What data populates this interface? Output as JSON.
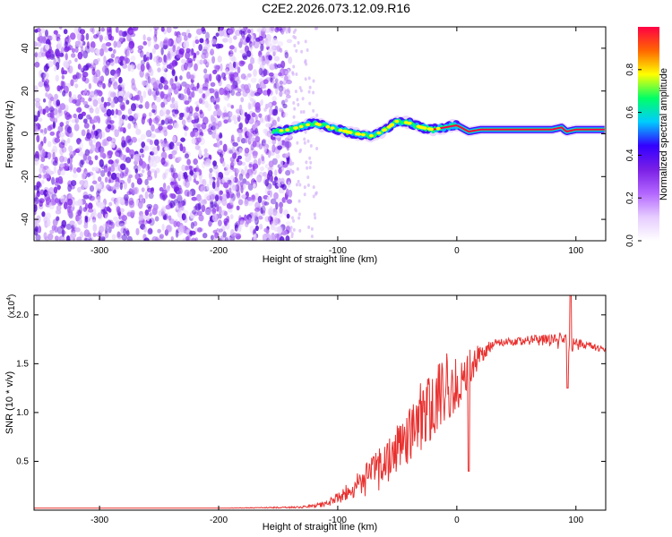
{
  "title": "C2E2.2026.073.12.09.R16",
  "chart_data": [
    {
      "type": "heatmap",
      "name": "spectrogram",
      "xlabel": "Height of straight line (km)",
      "ylabel": "Frequency (Hz)",
      "xlim": [
        -355,
        125
      ],
      "ylim": [
        -50,
        50
      ],
      "x_ticks": [
        -300,
        -200,
        -100,
        0,
        100
      ],
      "x_tick_labels": [
        "-300",
        "-200",
        "-100",
        "0",
        "100"
      ],
      "y_ticks": [
        -40,
        -20,
        0,
        20,
        40
      ],
      "y_tick_labels": [
        "-40",
        "-20",
        "0",
        "20",
        "40"
      ],
      "noise_region_x": [
        -355,
        -140
      ],
      "signal_track": {
        "x": [
          -155,
          -140,
          -120,
          -100,
          -85,
          -70,
          -60,
          -50,
          -40,
          -30,
          -20,
          -10,
          0,
          10,
          20,
          40,
          60,
          80,
          88,
          92,
          100,
          125
        ],
        "freq": [
          1,
          2,
          5,
          2,
          0,
          -1,
          2,
          6,
          5,
          3,
          2,
          3,
          4,
          1,
          2,
          2,
          2,
          2,
          3,
          1,
          2,
          2
        ]
      },
      "colorbar": {
        "label": "Normalized spectral amplitude",
        "range": [
          0,
          1
        ],
        "ticks": [
          0.0,
          0.2,
          0.4,
          0.6,
          0.8
        ],
        "tick_labels": [
          "0.0",
          "0.2",
          "0.4",
          "0.6",
          "0.8"
        ],
        "colors": [
          "#ffffff",
          "#e6ccff",
          "#b366ff",
          "#7a1fe6",
          "#3300ff",
          "#00ccff",
          "#00ff66",
          "#ffff00",
          "#ff6600",
          "#ff0044"
        ]
      }
    },
    {
      "type": "line",
      "name": "snr",
      "xlabel": "Height of straight line (km)",
      "ylabel": "SNR (10 * v/v)",
      "y_multiplier": "(x10",
      "y_multiplier_exp": "4",
      "y_multiplier_close": ")",
      "xlim": [
        -355,
        125
      ],
      "ylim": [
        0,
        2.2
      ],
      "x_ticks": [
        -300,
        -200,
        -100,
        0,
        100
      ],
      "x_tick_labels": [
        "-300",
        "-200",
        "-100",
        "0",
        "100"
      ],
      "y_ticks": [
        0.5,
        1.0,
        1.5,
        2.0
      ],
      "y_tick_labels": [
        "0.5",
        "1.0",
        "1.5",
        "2.0"
      ],
      "line_color": "#e8312f",
      "series": {
        "x": [
          -355,
          -200,
          -130,
          -110,
          -100,
          -90,
          -80,
          -70,
          -60,
          -50,
          -40,
          -30,
          -20,
          -10,
          0,
          10,
          20,
          30,
          40,
          50,
          60,
          70,
          80,
          90,
          95,
          100,
          110,
          125
        ],
        "y": [
          0.02,
          0.02,
          0.03,
          0.06,
          0.12,
          0.2,
          0.28,
          0.36,
          0.48,
          0.62,
          0.78,
          0.95,
          1.12,
          1.25,
          1.32,
          1.42,
          1.6,
          1.7,
          1.72,
          1.73,
          1.74,
          1.74,
          1.73,
          1.74,
          1.72,
          1.7,
          1.69,
          1.64
        ],
        "noise_amp": [
          0,
          0,
          0.01,
          0.03,
          0.06,
          0.1,
          0.16,
          0.2,
          0.25,
          0.28,
          0.32,
          0.36,
          0.38,
          0.36,
          0.3,
          0.22,
          0.1,
          0.05,
          0.04,
          0.04,
          0.05,
          0.06,
          0.07,
          0.1,
          0.12,
          0.06,
          0.04,
          0.03
        ]
      },
      "annotations": [
        {
          "x": 10,
          "y": 0.4,
          "note": "dip"
        },
        {
          "x": 93,
          "y": 1.25,
          "note": "dip"
        },
        {
          "x": 95,
          "y": 2.2,
          "note": "spike"
        }
      ]
    }
  ]
}
